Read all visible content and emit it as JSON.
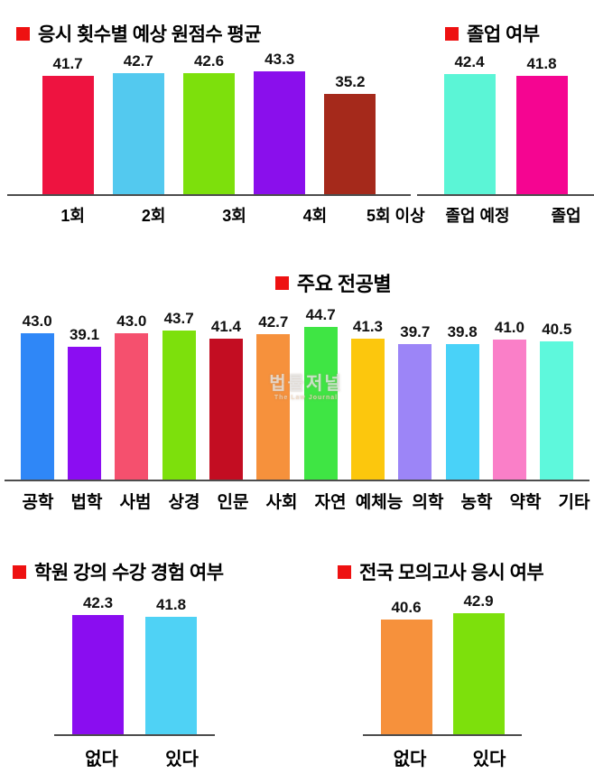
{
  "accent_color": "#ee1111",
  "axis_color": "#4d4d4d",
  "background_color": "#ffffff",
  "watermark": {
    "line1": "법률저널",
    "line2": "The Law Journal"
  },
  "chart_data": [
    {
      "type": "bar",
      "title": "응시 횟수별 예상 원점수 평균",
      "categories": [
        "1회",
        "2회",
        "3회",
        "4회",
        "5회 이상"
      ],
      "values": [
        41.7,
        42.7,
        42.6,
        43.3,
        35.2
      ],
      "value_labels": [
        "41.7",
        "42.7",
        "42.6",
        "43.3",
        "35.2"
      ],
      "colors": [
        "#ee1340",
        "#53c9ef",
        "#7de00c",
        "#8a0fec",
        "#a5291b"
      ],
      "legend": "none",
      "grid": "off",
      "value_axis": "hidden"
    },
    {
      "type": "bar",
      "title": "졸업 여부",
      "categories": [
        "졸업 예정",
        "졸업"
      ],
      "values": [
        42.4,
        41.8
      ],
      "value_labels": [
        "42.4",
        "41.8"
      ],
      "colors": [
        "#5bf5d6",
        "#f50591"
      ],
      "legend": "none",
      "grid": "off",
      "value_axis": "hidden"
    },
    {
      "type": "bar",
      "title": "주요 전공별",
      "categories": [
        "공학",
        "법학",
        "사범",
        "상경",
        "인문",
        "사회",
        "자연",
        "예체능",
        "의학",
        "농학",
        "약학",
        "기타"
      ],
      "values": [
        43.0,
        39.1,
        43.0,
        43.7,
        41.4,
        42.7,
        44.7,
        41.3,
        39.7,
        39.8,
        41.0,
        40.5
      ],
      "value_labels": [
        "43.0",
        "39.1",
        "43.0",
        "43.7",
        "41.4",
        "42.7",
        "44.7",
        "41.3",
        "39.7",
        "39.8",
        "41.0",
        "40.5"
      ],
      "colors": [
        "#2f87f7",
        "#8b0df2",
        "#f5506e",
        "#7de00c",
        "#c30d22",
        "#f6913c",
        "#3fe544",
        "#fcc70d",
        "#9c85f7",
        "#49d2f8",
        "#fa7fc8",
        "#5ef8dc"
      ],
      "legend": "none",
      "grid": "off",
      "value_axis": "hidden"
    },
    {
      "type": "bar",
      "title": "학원 강의 수강 경험 여부",
      "categories": [
        "없다",
        "있다"
      ],
      "values": [
        42.3,
        41.8
      ],
      "value_labels": [
        "42.3",
        "41.8"
      ],
      "colors": [
        "#8a0df0",
        "#4fd2f5"
      ],
      "legend": "none",
      "grid": "off",
      "value_axis": "hidden"
    },
    {
      "type": "bar",
      "title": "전국 모의고사 응시 여부",
      "categories": [
        "없다",
        "있다"
      ],
      "values": [
        40.6,
        42.9
      ],
      "value_labels": [
        "40.6",
        "42.9"
      ],
      "colors": [
        "#f6913c",
        "#7de00c"
      ],
      "legend": "none",
      "grid": "off",
      "value_axis": "hidden"
    }
  ]
}
